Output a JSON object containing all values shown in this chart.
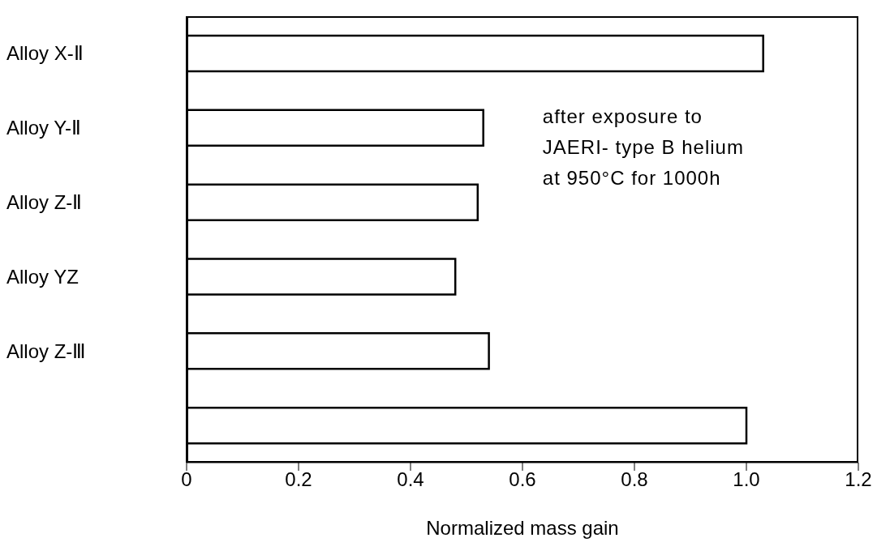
{
  "chart_data": {
    "type": "bar",
    "orientation": "horizontal",
    "xlabel": "Normalized mass gain",
    "categories": [
      "Alloy  X-Ⅱ",
      "Alloy  Y-Ⅱ",
      "Alloy  Z-Ⅱ",
      "Alloy  YZ",
      "Alloy  Z-Ⅲ",
      null
    ],
    "values": [
      1.03,
      0.53,
      0.52,
      0.48,
      0.54,
      1.0
    ],
    "color": "#ffffff",
    "xlim": [
      0,
      1.2
    ],
    "xticks": [
      0,
      0.2,
      0.4,
      0.6,
      0.8,
      {
        "value": 1.0,
        "label": "1.0"
      },
      1.2
    ],
    "annotations": [
      {
        "text": "after exposure to\nJAERI- type B helium\nat 950°C for 1000h"
      }
    ]
  }
}
